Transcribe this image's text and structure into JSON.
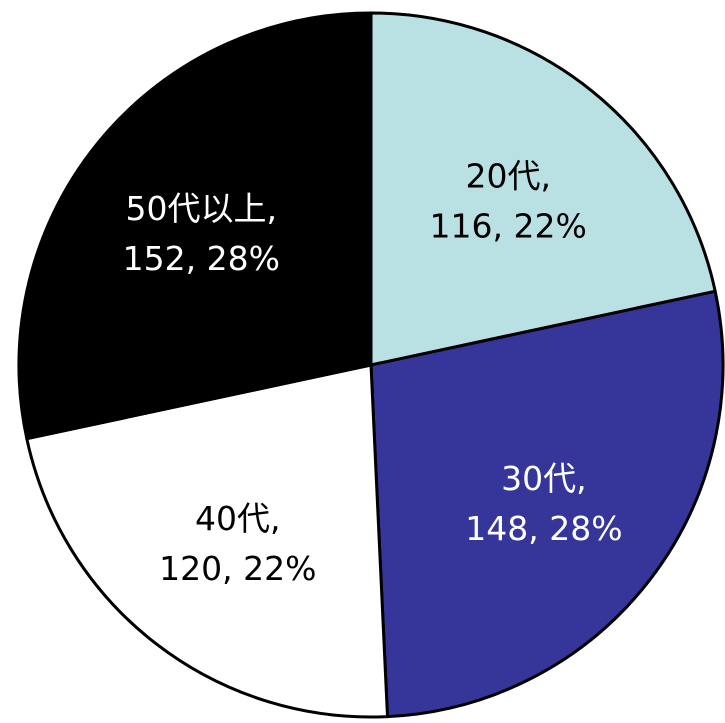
{
  "chart_data": {
    "type": "pie",
    "title": "",
    "legend": "none",
    "slices": [
      {
        "category": "20代",
        "value": 116,
        "percent": "22%",
        "color": "#b9e0e3",
        "label_color": "#000000",
        "label_line1": "20代,",
        "label_line2": "116, 22%"
      },
      {
        "category": "30代",
        "value": 148,
        "percent": "28%",
        "color": "#36359a",
        "label_color": "#ffffff",
        "label_line1": "30代,",
        "label_line2": "148, 28%"
      },
      {
        "category": "40代",
        "value": 120,
        "percent": "22%",
        "color": "#ffffff",
        "label_color": "#000000",
        "label_line1": "40代,",
        "label_line2": "120, 22%"
      },
      {
        "category": "50代以上",
        "value": 152,
        "percent": "28%",
        "color": "#000000",
        "label_color": "#ffffff",
        "label_line1": "50代以上,",
        "label_line2": "152, 28%"
      }
    ]
  }
}
